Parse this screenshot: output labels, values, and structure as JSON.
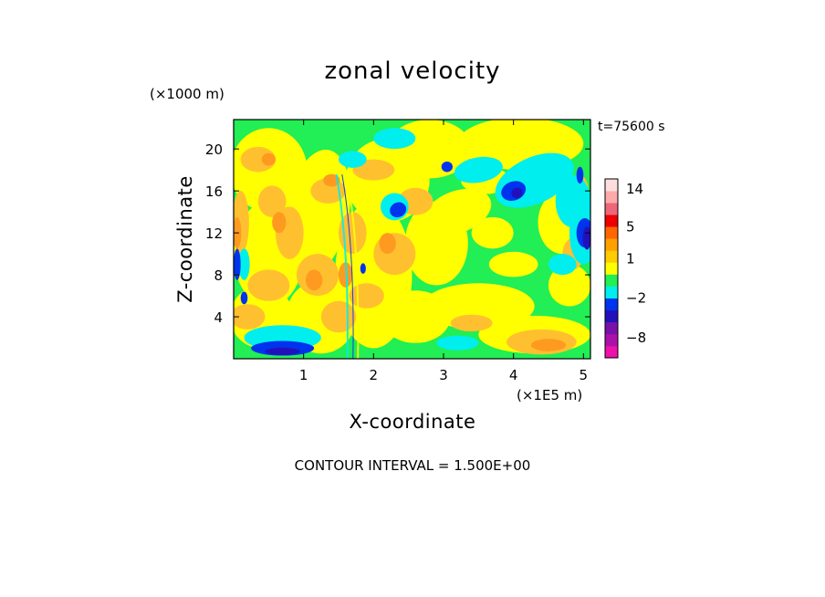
{
  "chart_data": {
    "type": "heatmap",
    "title": "zonal velocity",
    "time_label": "t=75600 s",
    "xlabel": "X-coordinate",
    "ylabel": "Z-coordinate",
    "x_unit": "(×1E5 m)",
    "y_unit": "(×1000 m)",
    "xlim": [
      0,
      5.1
    ],
    "ylim": [
      0,
      22.8
    ],
    "x_ticks": [
      1,
      2,
      3,
      4,
      5
    ],
    "y_ticks": [
      4,
      8,
      12,
      16,
      20
    ],
    "contour_interval_text": "CONTOUR INTERVAL = 1.500E+00",
    "colorbar": {
      "labels": [
        {
          "value": 14,
          "text": "14"
        },
        {
          "value": 5,
          "text": "5"
        },
        {
          "value": 1,
          "text": "1"
        },
        {
          "value": -2,
          "text": "−2"
        },
        {
          "value": -8,
          "text": "−8"
        }
      ],
      "bands": [
        {
          "from": -14,
          "to": -10,
          "color": "#ee11aa"
        },
        {
          "from": -10,
          "to": -7,
          "color": "#aa11aa"
        },
        {
          "from": -7,
          "to": -5,
          "color": "#7711aa"
        },
        {
          "from": -5,
          "to": -3.5,
          "color": "#2211bb"
        },
        {
          "from": -3.5,
          "to": -2,
          "color": "#0033ee"
        },
        {
          "from": -2,
          "to": -0.5,
          "color": "#00eeee"
        },
        {
          "from": -0.5,
          "to": 0.3,
          "color": "#22ee55"
        },
        {
          "from": 0.3,
          "to": 0.8,
          "color": "#ffff00"
        },
        {
          "from": 0.8,
          "to": 1.5,
          "color": "#ffcc00"
        },
        {
          "from": 1.5,
          "to": 3,
          "color": "#ffa000"
        },
        {
          "from": 3,
          "to": 5,
          "color": "#ff6600"
        },
        {
          "from": 5,
          "to": 8,
          "color": "#ee0000"
        },
        {
          "from": 8,
          "to": 11,
          "color": "#ee6677"
        },
        {
          "from": 11,
          "to": 13.5,
          "color": "#ffaaaa"
        },
        {
          "from": 13.5,
          "to": 17,
          "color": "#ffdddd"
        }
      ]
    },
    "field_colors": {
      "background": "#22ee55",
      "yellow": "#ffff00",
      "orange": "#ffc030",
      "dark_orange": "#ff9a20",
      "cyan": "#00eeee",
      "blue": "#0033ee",
      "navy": "#2211bb",
      "purple": "#7711aa"
    }
  }
}
